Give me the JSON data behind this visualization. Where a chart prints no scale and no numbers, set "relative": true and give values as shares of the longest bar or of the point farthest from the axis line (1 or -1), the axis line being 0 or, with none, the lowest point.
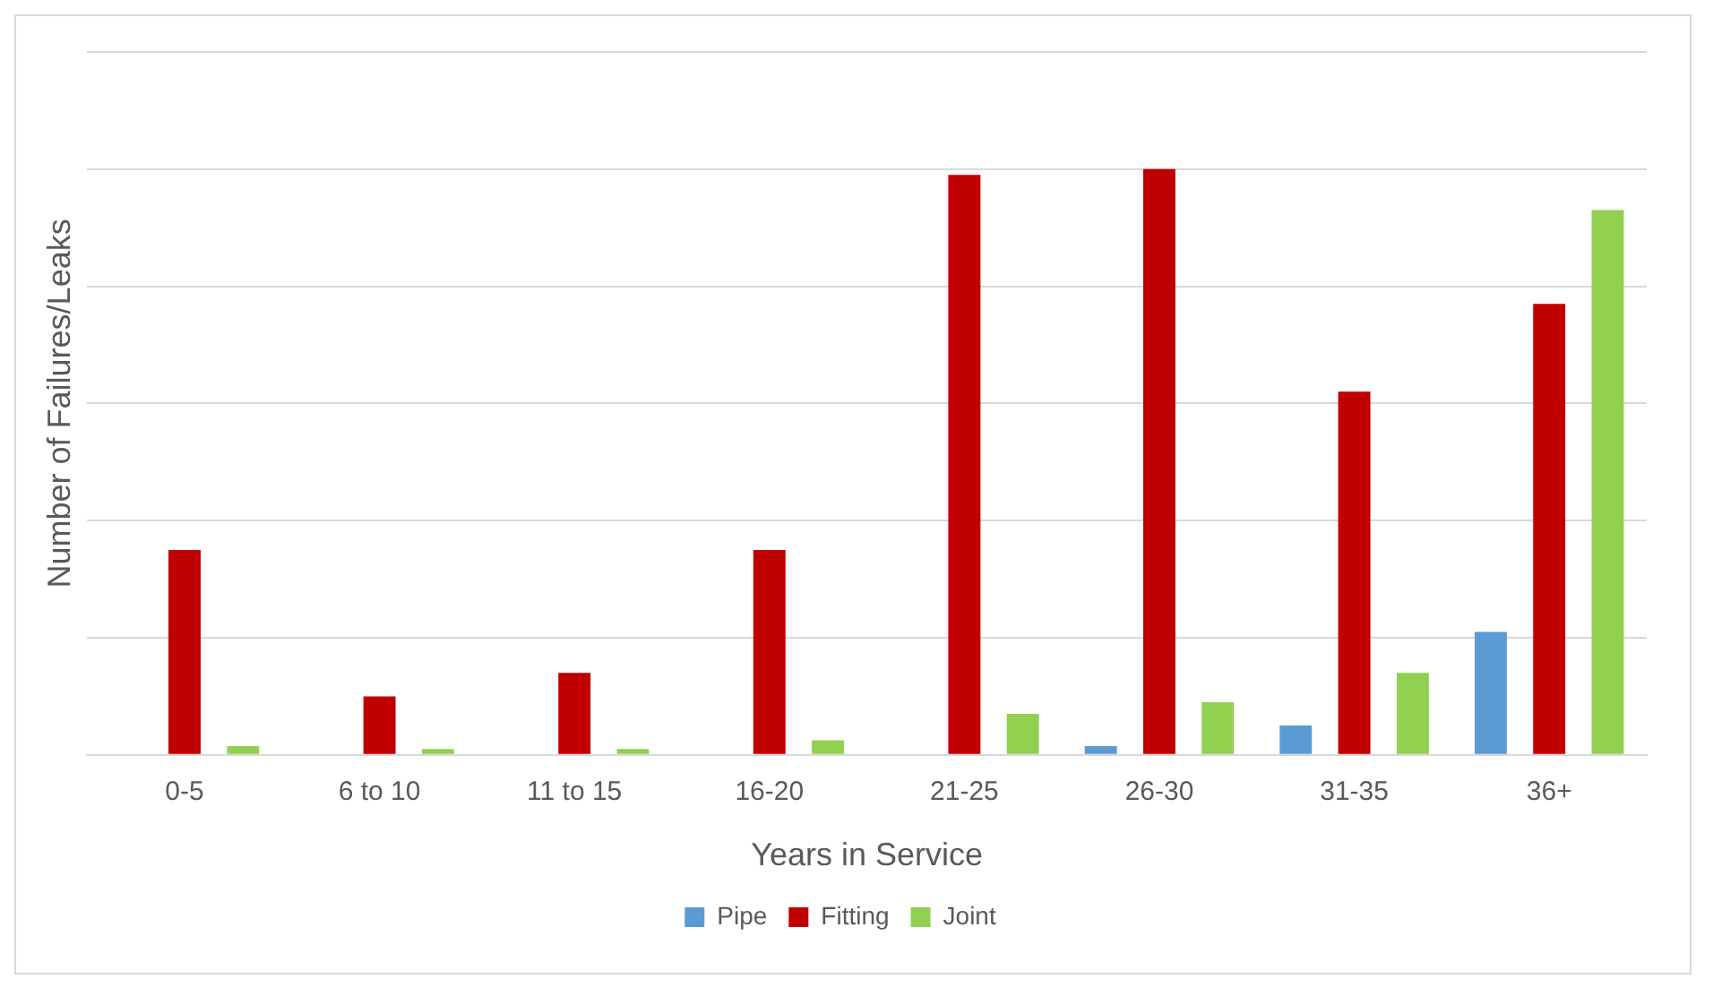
{
  "chart_data": {
    "type": "bar",
    "relative": true,
    "xlabel": "Years in Service",
    "ylabel": "Number of Failures/Leaks",
    "categories": [
      "0-5",
      "6 to 10",
      "11 to 15",
      "16-20",
      "21-25",
      "26-30",
      "31-35",
      "36+"
    ],
    "series": [
      {
        "name": "Pipe",
        "color": "#5b9bd5",
        "values": [
          0,
          0,
          0,
          0,
          0,
          0.015,
          0.05,
          0.21
        ]
      },
      {
        "name": "Fitting",
        "color": "#c00000",
        "values": [
          0.35,
          0.1,
          0.14,
          0.35,
          0.99,
          1,
          0.62,
          0.77
        ]
      },
      {
        "name": "Joint",
        "color": "#92d050",
        "values": [
          0.015,
          0.01,
          0.01,
          0.025,
          0.07,
          0.09,
          0.14,
          0.93
        ]
      }
    ],
    "grid": "y",
    "legend": "bottom"
  }
}
